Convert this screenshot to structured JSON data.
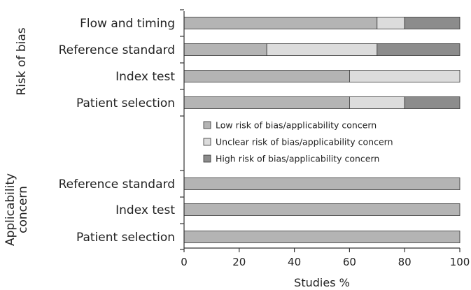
{
  "chart_data": {
    "type": "bar",
    "orientation": "horizontal",
    "stacked": true,
    "xlabel": "Studies %",
    "xlim": [
      0,
      100
    ],
    "xticks": [
      0,
      20,
      40,
      60,
      80,
      100
    ],
    "groups": [
      {
        "label": "Risk of bias",
        "categories": [
          "Flow and timing",
          "Reference standard",
          "Index test",
          "Patient selection"
        ]
      },
      {
        "label": "Applicability concern",
        "label_lines": [
          "Applicability",
          "concern"
        ],
        "categories": [
          "Reference standard",
          "Index test",
          "Patient selection"
        ]
      }
    ],
    "series": [
      {
        "name": "Low risk of bias/applicability concern",
        "color": "#b4b4b4",
        "values": [
          70,
          30,
          60,
          60,
          100,
          100,
          100
        ]
      },
      {
        "name": "Unclear risk of bias/applicability concern",
        "color": "#dcdcdc",
        "values": [
          10,
          40,
          40,
          20,
          0,
          0,
          0
        ]
      },
      {
        "name": "High risk of bias/applicability concern",
        "color": "#8c8c8c",
        "values": [
          20,
          30,
          0,
          20,
          0,
          0,
          0
        ]
      }
    ],
    "legend_position": "inside-middle"
  }
}
